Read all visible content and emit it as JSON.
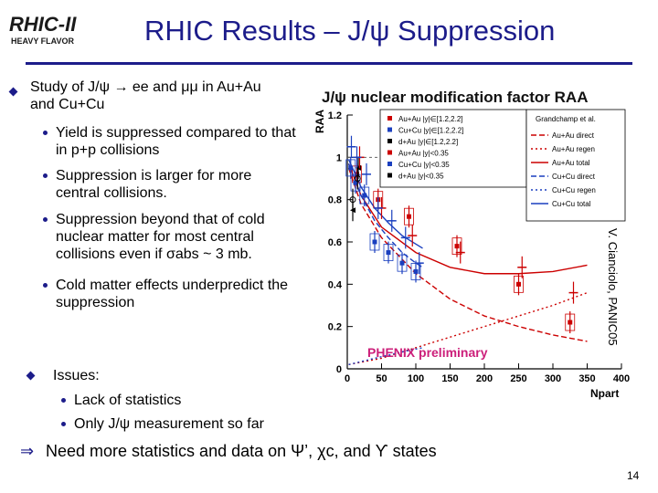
{
  "header": {
    "logo_line1": "RHIC-II",
    "logo_line2": "HEAVY FLAVOR",
    "title": "RHIC Results – J/ψ Suppression"
  },
  "content": {
    "main_bullet": "Study of J/ψ → ee and μμ in Au+Au and Cu+Cu",
    "sub_bullets": [
      "Yield is suppressed compared to that in p+p collisions",
      "Suppression is larger for more central collisions.",
      "Suppression beyond that of cold nuclear matter for most central collisions even if σabs ~ 3 mb.",
      "Cold matter effects underpredict the suppression"
    ],
    "issues_label": "Issues:",
    "issues": [
      "Lack of statistics",
      "Only J/ψ measurement so far"
    ],
    "conclusion": "Need more statistics and data on Ψ’, χc, and ϒ states"
  },
  "figure": {
    "credit": "V. Cianciolo, PANIC05",
    "preliminary_label": "PHENIX preliminary"
  },
  "chart_data": {
    "type": "scatter",
    "title": "J/ψ nuclear modification factor RAA",
    "xlabel": "Npart",
    "ylabel": "RAA",
    "xlim": [
      0,
      400
    ],
    "ylim": [
      0,
      1.2
    ],
    "xticks": [
      "0",
      "50",
      "100",
      "150",
      "200",
      "250",
      "300",
      "350",
      "400"
    ],
    "yticks": [
      "0",
      "0.2",
      "0.4",
      "0.6",
      "0.8",
      "1",
      "1.2"
    ],
    "legend_data": [
      "Au+Au |y|∈[1.2,2.2]",
      "Cu+Cu |y|∈[1.2,2.2]",
      "d+Au |y|∈[1.2,2.2]",
      "Au+Au |y|<0.35",
      "Cu+Cu |y|<0.35",
      "d+Au |y|<0.35"
    ],
    "legend_theory_header": "Grandchamp et al.",
    "legend_theory": [
      "Au+Au direct",
      "Au+Au regen",
      "Au+Au total",
      "Cu+Cu direct",
      "Cu+Cu regen",
      "Cu+Cu total"
    ],
    "series": [
      {
        "name": "Au+Au |y|∈[1.2,2.2]",
        "color": "#cc0000",
        "marker": "square",
        "x": [
          14,
          45,
          90,
          160,
          250,
          325
        ],
        "y": [
          0.92,
          0.8,
          0.72,
          0.58,
          0.4,
          0.22
        ]
      },
      {
        "name": "Cu+Cu |y|∈[1.2,2.2]",
        "color": "#1a3fbf",
        "marker": "square",
        "x": [
          5,
          12,
          25,
          40,
          60,
          80,
          100
        ],
        "y": [
          0.95,
          0.88,
          0.82,
          0.6,
          0.55,
          0.5,
          0.46
        ]
      },
      {
        "name": "d+Au |y|∈[1.2,2.2]",
        "color": "#000000",
        "marker": "triangle",
        "x": [
          8,
          16
        ],
        "y": [
          0.75,
          0.95
        ]
      },
      {
        "name": "Au+Au |y|<0.35",
        "color": "#cc0000",
        "marker": "cross",
        "x": [
          18,
          50,
          95,
          165,
          255,
          330
        ],
        "y": [
          1.0,
          0.76,
          0.63,
          0.55,
          0.48,
          0.36
        ]
      },
      {
        "name": "Cu+Cu |y|<0.35",
        "color": "#1a3fbf",
        "marker": "cross",
        "x": [
          6,
          14,
          28,
          45,
          65,
          85,
          105
        ],
        "y": [
          1.05,
          1.0,
          0.92,
          0.76,
          0.7,
          0.62,
          0.5
        ]
      },
      {
        "name": "d+Au |y|<0.35",
        "color": "#000000",
        "marker": "circle",
        "x": [
          8,
          15
        ],
        "y": [
          0.8,
          0.9
        ]
      }
    ],
    "curves": [
      {
        "name": "Au+Au direct",
        "color": "#cc0000",
        "dash": "6 3",
        "x": [
          2,
          20,
          50,
          100,
          150,
          200,
          250,
          300,
          350
        ],
        "y": [
          0.95,
          0.78,
          0.62,
          0.45,
          0.33,
          0.25,
          0.2,
          0.16,
          0.13
        ]
      },
      {
        "name": "Au+Au regen",
        "color": "#cc0000",
        "dash": "2 3",
        "x": [
          2,
          50,
          100,
          150,
          200,
          250,
          300,
          350
        ],
        "y": [
          0.02,
          0.05,
          0.1,
          0.15,
          0.2,
          0.25,
          0.3,
          0.36
        ]
      },
      {
        "name": "Au+Au total",
        "color": "#cc0000",
        "dash": "",
        "x": [
          2,
          20,
          50,
          100,
          150,
          200,
          250,
          300,
          350
        ],
        "y": [
          0.97,
          0.82,
          0.67,
          0.55,
          0.48,
          0.45,
          0.45,
          0.46,
          0.49
        ]
      },
      {
        "name": "Cu+Cu direct",
        "color": "#1a3fbf",
        "dash": "6 3",
        "x": [
          2,
          20,
          40,
          60,
          80,
          100,
          110
        ],
        "y": [
          0.97,
          0.82,
          0.7,
          0.62,
          0.55,
          0.5,
          0.48
        ]
      },
      {
        "name": "Cu+Cu regen",
        "color": "#1a3fbf",
        "dash": "2 3",
        "x": [
          2,
          40,
          80,
          110
        ],
        "y": [
          0.02,
          0.05,
          0.08,
          0.1
        ]
      },
      {
        "name": "Cu+Cu total",
        "color": "#1a3fbf",
        "dash": "",
        "x": [
          2,
          20,
          40,
          60,
          80,
          100,
          110
        ],
        "y": [
          0.99,
          0.86,
          0.76,
          0.69,
          0.63,
          0.59,
          0.57
        ]
      }
    ]
  }
}
